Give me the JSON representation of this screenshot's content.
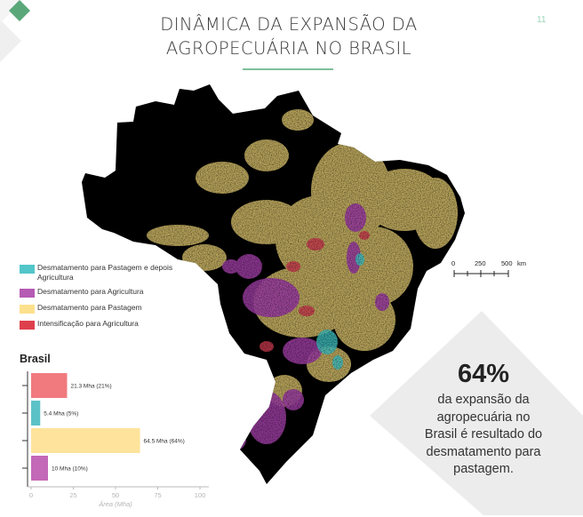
{
  "page": {
    "title_line1": "DINÂMICA DA EXPANSÃO DA",
    "title_line2": "AGROPECUÁRIA NO BRASIL",
    "page_number": "11"
  },
  "colors": {
    "accent": "#7fbf9a",
    "accent_dark": "#4e9e6d",
    "map_black": "#000000",
    "pasture": "#f2d98a",
    "agriculture": "#9b3ca0",
    "pasture_then_agriculture": "#3fbfc0",
    "intensification": "#c83a4e",
    "panel_gray": "#ececec"
  },
  "legend": {
    "items": [
      {
        "label": "Desmatamento para Pastagem e depois Agricultura",
        "color": "#52c6c9"
      },
      {
        "label": "Desmatamento para Agricultura",
        "color": "#b55bb3"
      },
      {
        "label": "Desmatamento para Pastagem",
        "color": "#fde08c"
      },
      {
        "label": "Intensificação para Agricultura",
        "color": "#de3f4c"
      }
    ]
  },
  "scale": {
    "label_0": "0",
    "label_250": "250",
    "label_500": "500",
    "unit": "km"
  },
  "chart_section": {
    "title": "Brasil"
  },
  "chart_data": {
    "type": "bar",
    "orientation": "horizontal",
    "title": "Brasil",
    "categories": [
      "Intensificação para Agricultura",
      "Desmatamento para Pastagem e depois Agricultura",
      "Desmatamento para Pastagem",
      "Desmatamento para Agricultura"
    ],
    "values": [
      21.3,
      5.4,
      64.5,
      10
    ],
    "colors": [
      "#f07a7e",
      "#5bc2c8",
      "#fde39b",
      "#c468b8"
    ],
    "data_labels": [
      "21.3 Mha (21%)",
      "5.4 Mha (5%)",
      "64.5 Mha (64%)",
      "10 Mha (10%)"
    ],
    "xlabel": "Área (Mha)",
    "ylabel": "",
    "xlim": [
      0,
      100
    ],
    "xticks": [
      0,
      25,
      50,
      75,
      100
    ],
    "xtick_labels": [
      "0",
      "25",
      "50",
      "75",
      "100"
    ]
  },
  "stat": {
    "value": "64%",
    "line1": "da expansão da",
    "line2": "agropecuária no",
    "line3": "Brasil é resultado do",
    "line4": "desmatamento para",
    "line5": "pastagem."
  }
}
